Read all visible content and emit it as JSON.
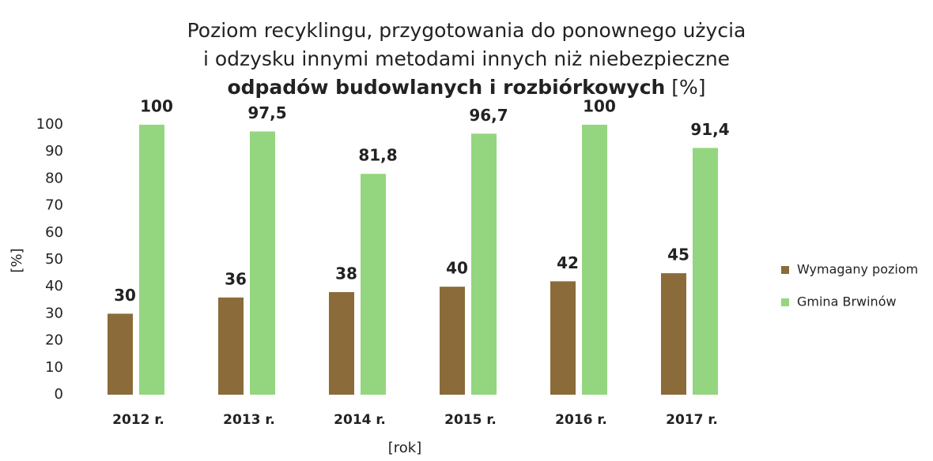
{
  "chart_data": {
    "type": "bar",
    "title": [
      "Poziom recyklingu, przygotowania do ponownego użycia",
      "i odzysku innymi metodami innych niż niebezpieczne",
      "odpadów budowlanych i rozbiórkowych",
      "[%]"
    ],
    "x_label": "[rok]",
    "y_label": "[%]",
    "categories": [
      "2012 r.",
      "2013 r.",
      "2014 r.",
      "2015 r.",
      "2016 r.",
      "2017 r."
    ],
    "series": [
      {
        "name": "Wymagany poziom",
        "color": "#8b6b3a",
        "values": [
          30,
          36,
          38,
          40,
          42,
          45
        ]
      },
      {
        "name": "Gmina Brwinów",
        "color": "#93d67f",
        "values": [
          100,
          97.5,
          81.8,
          96.7,
          100,
          91.4
        ],
        "value_labels": [
          "100",
          "97,5",
          "81,8",
          "96,7",
          "100",
          "91,4"
        ]
      }
    ],
    "ylim": [
      0,
      100
    ],
    "yticks": [
      0,
      10,
      20,
      30,
      40,
      50,
      60,
      70,
      80,
      90,
      100
    ],
    "grid": false,
    "legend": "right"
  }
}
